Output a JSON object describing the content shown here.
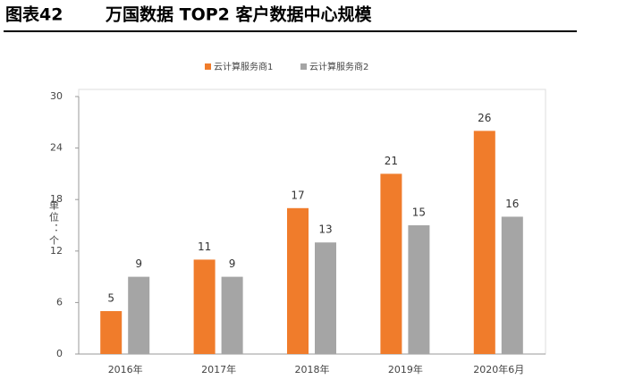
{
  "chart_data": {
    "type": "bar",
    "label": "图表42",
    "title": "万国数据 TOP2 客户数据中心规模",
    "y_axis_label": "单位：个",
    "categories": [
      "2016年",
      "2017年",
      "2018年",
      "2019年",
      "2020年6月"
    ],
    "series": [
      {
        "name": "云计算服务商1",
        "color": "#f07c2b",
        "values": [
          5,
          11,
          17,
          21,
          26
        ]
      },
      {
        "name": "云计算服务商2",
        "color": "#a5a5a5",
        "values": [
          9,
          9,
          13,
          15,
          16
        ]
      }
    ],
    "ylim": [
      0,
      30
    ],
    "yticks": [
      0,
      6,
      12,
      18,
      24,
      30
    ],
    "grid": false
  }
}
